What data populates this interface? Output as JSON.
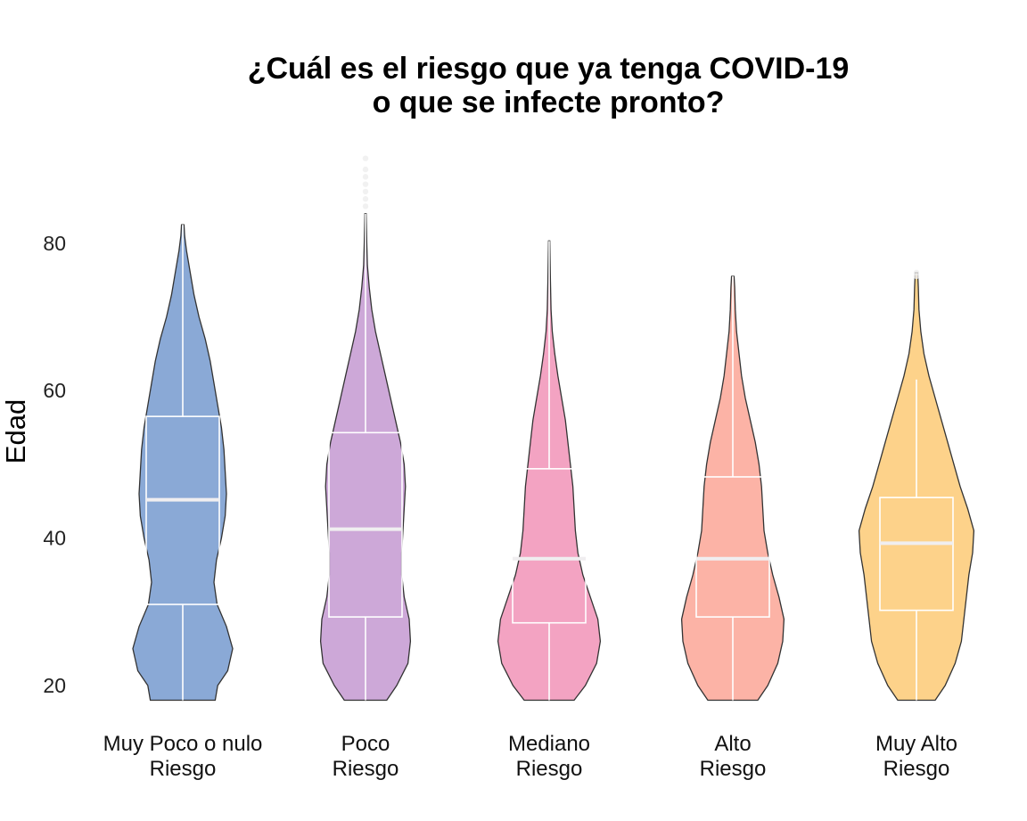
{
  "chart_data": {
    "type": "violin",
    "title_lines": [
      "¿Cuál es el riesgo que ya tenga COVID-19",
      "o que se infecte pronto?"
    ],
    "xlabel": "",
    "ylabel": "Edad",
    "ylim": [
      18,
      92
    ],
    "yticks": [
      20,
      40,
      60,
      80
    ],
    "grid": false,
    "categories": [
      {
        "label_lines": [
          "Muy Poco o nulo",
          "Riesgo"
        ],
        "color": "#8aa9d6",
        "box": {
          "lower_whisker": 18,
          "q1": 31,
          "median": 45.2,
          "q3": 56.5,
          "upper_whisker": 82.5
        },
        "outliers": [],
        "density": [
          [
            18,
            0.52
          ],
          [
            20,
            0.56
          ],
          [
            22,
            0.72
          ],
          [
            25,
            0.8
          ],
          [
            28,
            0.7
          ],
          [
            31,
            0.55
          ],
          [
            34,
            0.5
          ],
          [
            37,
            0.54
          ],
          [
            40,
            0.62
          ],
          [
            43,
            0.68
          ],
          [
            46,
            0.7
          ],
          [
            49,
            0.68
          ],
          [
            52,
            0.66
          ],
          [
            55,
            0.62
          ],
          [
            58,
            0.56
          ],
          [
            61,
            0.5
          ],
          [
            64,
            0.44
          ],
          [
            67,
            0.36
          ],
          [
            70,
            0.26
          ],
          [
            73,
            0.18
          ],
          [
            76,
            0.12
          ],
          [
            79,
            0.06
          ],
          [
            81,
            0.03
          ],
          [
            82.5,
            0.02
          ]
        ]
      },
      {
        "label_lines": [
          "Poco",
          "Riesgo"
        ],
        "color": "#cda8d8",
        "box": {
          "lower_whisker": 18,
          "q1": 29.3,
          "median": 41.2,
          "q3": 54.3,
          "upper_whisker": 84
        },
        "outliers": [
          85,
          86,
          87,
          88,
          89,
          90,
          91.5
        ],
        "density": [
          [
            18,
            0.34
          ],
          [
            20,
            0.5
          ],
          [
            23,
            0.68
          ],
          [
            26,
            0.72
          ],
          [
            29,
            0.7
          ],
          [
            32,
            0.62
          ],
          [
            35,
            0.58
          ],
          [
            38,
            0.58
          ],
          [
            41,
            0.6
          ],
          [
            44,
            0.62
          ],
          [
            47,
            0.64
          ],
          [
            50,
            0.62
          ],
          [
            53,
            0.56
          ],
          [
            56,
            0.48
          ],
          [
            59,
            0.4
          ],
          [
            62,
            0.32
          ],
          [
            65,
            0.24
          ],
          [
            68,
            0.16
          ],
          [
            71,
            0.1
          ],
          [
            74,
            0.06
          ],
          [
            77,
            0.03
          ],
          [
            80,
            0.02
          ],
          [
            84,
            0.01
          ]
        ]
      },
      {
        "label_lines": [
          "Mediano",
          "Riesgo"
        ],
        "color": "#f3a3c2",
        "box": {
          "lower_whisker": 18,
          "q1": 28.5,
          "median": 37.2,
          "q3": 49.4,
          "upper_whisker": 80.3
        },
        "outliers": [],
        "density": [
          [
            18,
            0.4
          ],
          [
            20,
            0.58
          ],
          [
            23,
            0.76
          ],
          [
            26,
            0.82
          ],
          [
            29,
            0.78
          ],
          [
            32,
            0.66
          ],
          [
            35,
            0.54
          ],
          [
            38,
            0.46
          ],
          [
            41,
            0.42
          ],
          [
            44,
            0.4
          ],
          [
            47,
            0.38
          ],
          [
            50,
            0.34
          ],
          [
            53,
            0.3
          ],
          [
            56,
            0.26
          ],
          [
            59,
            0.2
          ],
          [
            62,
            0.14
          ],
          [
            65,
            0.09
          ],
          [
            68,
            0.05
          ],
          [
            71,
            0.03
          ],
          [
            75,
            0.02
          ],
          [
            80.3,
            0.01
          ]
        ]
      },
      {
        "label_lines": [
          "Alto",
          "Riesgo"
        ],
        "color": "#fcb3a6",
        "box": {
          "lower_whisker": 18,
          "q1": 29.3,
          "median": 37.2,
          "q3": 48.3,
          "upper_whisker": 75.5
        },
        "outliers": [],
        "density": [
          [
            18,
            0.4
          ],
          [
            20,
            0.56
          ],
          [
            23,
            0.72
          ],
          [
            26,
            0.8
          ],
          [
            29,
            0.82
          ],
          [
            32,
            0.74
          ],
          [
            35,
            0.64
          ],
          [
            38,
            0.56
          ],
          [
            41,
            0.5
          ],
          [
            44,
            0.48
          ],
          [
            47,
            0.46
          ],
          [
            50,
            0.42
          ],
          [
            53,
            0.36
          ],
          [
            56,
            0.28
          ],
          [
            59,
            0.2
          ],
          [
            62,
            0.14
          ],
          [
            65,
            0.1
          ],
          [
            68,
            0.06
          ],
          [
            71,
            0.04
          ],
          [
            74,
            0.03
          ],
          [
            75.5,
            0.02
          ]
        ]
      },
      {
        "label_lines": [
          "Muy Alto",
          "Riesgo"
        ],
        "color": "#fdd28a",
        "box": {
          "lower_whisker": 18,
          "q1": 30.2,
          "median": 39.3,
          "q3": 45.5,
          "upper_whisker": 61.5
        },
        "outliers": [
          75.5,
          76
        ],
        "density": [
          [
            18,
            0.3
          ],
          [
            20,
            0.46
          ],
          [
            23,
            0.62
          ],
          [
            26,
            0.72
          ],
          [
            29,
            0.76
          ],
          [
            32,
            0.8
          ],
          [
            35,
            0.84
          ],
          [
            38,
            0.9
          ],
          [
            41,
            0.92
          ],
          [
            44,
            0.82
          ],
          [
            47,
            0.7
          ],
          [
            50,
            0.6
          ],
          [
            53,
            0.5
          ],
          [
            56,
            0.4
          ],
          [
            59,
            0.3
          ],
          [
            62,
            0.2
          ],
          [
            65,
            0.12
          ],
          [
            68,
            0.07
          ],
          [
            71,
            0.04
          ],
          [
            74,
            0.03
          ],
          [
            76,
            0.02
          ]
        ]
      }
    ]
  }
}
